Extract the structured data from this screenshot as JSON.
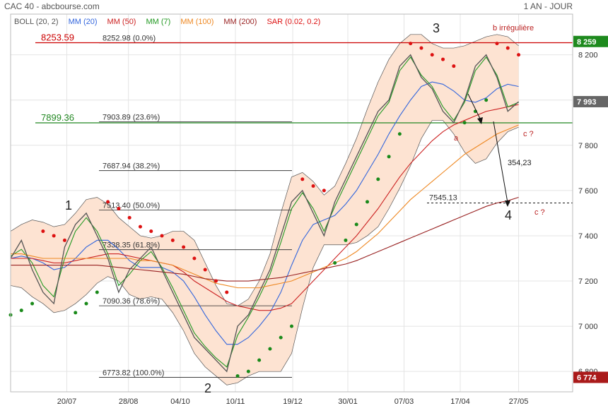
{
  "chart_data": {
    "type": "line",
    "title": "CAC 40 - abcbourse.com",
    "period": "1 AN - JOUR",
    "x": [
      0,
      1,
      2,
      3,
      4,
      5,
      6,
      7,
      8,
      9,
      10,
      11,
      12,
      13,
      14,
      15,
      16,
      17,
      18,
      19,
      20,
      21,
      22,
      23,
      24,
      25,
      26,
      27,
      28,
      29,
      30,
      31,
      32,
      33,
      34,
      35,
      36,
      37,
      38,
      39,
      40,
      41,
      42,
      43,
      44,
      45,
      46,
      47
    ],
    "xlim": [
      0,
      52
    ],
    "xticks": [
      {
        "value": 5.2,
        "label": "20/07"
      },
      {
        "value": 10.9,
        "label": "28/08"
      },
      {
        "value": 15.7,
        "label": "04/10"
      },
      {
        "value": 20.8,
        "label": "10/11"
      },
      {
        "value": 26.1,
        "label": "19/12"
      },
      {
        "value": 31.2,
        "label": "30/01"
      },
      {
        "value": 36.4,
        "label": "07/03"
      },
      {
        "value": 41.6,
        "label": "17/04"
      },
      {
        "value": 47,
        "label": "27/05"
      }
    ],
    "ylim": [
      6710,
      8380
    ],
    "yticks": [
      {
        "value": 6800,
        "label": "6 800"
      },
      {
        "value": 7000,
        "label": "7 000"
      },
      {
        "value": 7200,
        "label": "7 200"
      },
      {
        "value": 7400,
        "label": "7 400"
      },
      {
        "value": 7600,
        "label": "7 600"
      },
      {
        "value": 7800,
        "label": "7 800"
      },
      {
        "value": 8000,
        "label": "8 000"
      },
      {
        "value": 8200,
        "label": "8 200"
      }
    ],
    "grid": true,
    "close": {
      "color": "#555555",
      "values": [
        7300,
        7380,
        7250,
        7150,
        7100,
        7350,
        7450,
        7500,
        7400,
        7300,
        7150,
        7250,
        7300,
        7350,
        7250,
        7150,
        7050,
        6950,
        6900,
        6850,
        6800,
        7000,
        7050,
        7150,
        7250,
        7400,
        7550,
        7600,
        7500,
        7400,
        7550,
        7650,
        7750,
        7850,
        7950,
        8000,
        8150,
        8200,
        8100,
        8050,
        7950,
        7900,
        8000,
        8150,
        8200,
        8100,
        7950,
        7993
      ]
    },
    "bollinger": {
      "name": "BOLL (20, 2)",
      "color": "#555555",
      "fill": "#fde3d2",
      "upper": [
        7420,
        7450,
        7470,
        7460,
        7440,
        7450,
        7500,
        7560,
        7570,
        7540,
        7480,
        7440,
        7400,
        7390,
        7400,
        7420,
        7420,
        7380,
        7280,
        7180,
        7100,
        7090,
        7120,
        7200,
        7320,
        7500,
        7660,
        7680,
        7640,
        7580,
        7620,
        7720,
        7830,
        7960,
        8080,
        8180,
        8250,
        8290,
        8290,
        8250,
        8230,
        8230,
        8240,
        8260,
        8280,
        8290,
        8280,
        8240
      ],
      "lower": [
        7180,
        7170,
        7130,
        7100,
        7060,
        7070,
        7100,
        7140,
        7190,
        7220,
        7200,
        7140,
        7120,
        7130,
        7120,
        7060,
        6980,
        6880,
        6820,
        6780,
        6740,
        6750,
        6780,
        6800,
        6800,
        6800,
        6880,
        7080,
        7260,
        7360,
        7360,
        7360,
        7370,
        7400,
        7440,
        7520,
        7610,
        7710,
        7830,
        7910,
        7910,
        7850,
        7770,
        7720,
        7740,
        7810,
        7860,
        7880
      ]
    },
    "series": [
      {
        "name": "MM (20)",
        "color": "#3366dd",
        "values": [
          7300,
          7310,
          7300,
          7280,
          7250,
          7260,
          7300,
          7350,
          7380,
          7380,
          7340,
          7290,
          7260,
          7260,
          7260,
          7240,
          7200,
          7130,
          7050,
          6980,
          6920,
          6920,
          6950,
          7000,
          7060,
          7150,
          7270,
          7380,
          7450,
          7470,
          7490,
          7540,
          7600,
          7680,
          7760,
          7850,
          7930,
          8000,
          8060,
          8080,
          8070,
          8040,
          8000,
          7990,
          8010,
          8050,
          8070,
          8060
        ]
      },
      {
        "name": "MM (50)",
        "color": "#cc2222",
        "values": [
          7300,
          7300,
          7300,
          7290,
          7280,
          7280,
          7290,
          7300,
          7310,
          7320,
          7320,
          7310,
          7300,
          7290,
          7280,
          7270,
          7240,
          7200,
          7170,
          7140,
          7110,
          7090,
          7080,
          7070,
          7070,
          7080,
          7100,
          7150,
          7200,
          7250,
          7300,
          7350,
          7400,
          7460,
          7520,
          7590,
          7660,
          7720,
          7770,
          7820,
          7860,
          7890,
          7910,
          7930,
          7950,
          7960,
          7970,
          7980
        ]
      },
      {
        "name": "MM (7)",
        "color": "#229922",
        "values": [
          7310,
          7340,
          7280,
          7180,
          7130,
          7300,
          7420,
          7480,
          7420,
          7320,
          7180,
          7230,
          7290,
          7330,
          7260,
          7170,
          7070,
          6970,
          6910,
          6860,
          6820,
          6960,
          7040,
          7130,
          7230,
          7370,
          7520,
          7590,
          7520,
          7420,
          7530,
          7630,
          7730,
          7830,
          7930,
          7990,
          8130,
          8190,
          8110,
          8060,
          7970,
          7910,
          7990,
          8130,
          8190,
          8110,
          7970,
          7990
        ]
      },
      {
        "name": "MM (100)",
        "color": "#ee8822",
        "values": [
          7320,
          7320,
          7310,
          7300,
          7300,
          7300,
          7300,
          7300,
          7300,
          7300,
          7300,
          7300,
          7290,
          7290,
          7280,
          7270,
          7250,
          7230,
          7210,
          7190,
          7180,
          7170,
          7170,
          7170,
          7180,
          7190,
          7200,
          7220,
          7240,
          7260,
          7280,
          7300,
          7330,
          7370,
          7410,
          7460,
          7510,
          7560,
          7600,
          7640,
          7680,
          7720,
          7760,
          7790,
          7820,
          7850,
          7870,
          7890
        ]
      },
      {
        "name": "MM (200)",
        "color": "#992222",
        "values": [
          7270,
          7270,
          7270,
          7270,
          7270,
          7270,
          7270,
          7270,
          7270,
          7265,
          7260,
          7255,
          7250,
          7245,
          7240,
          7235,
          7230,
          7220,
          7210,
          7205,
          7200,
          7200,
          7200,
          7205,
          7210,
          7215,
          7225,
          7235,
          7245,
          7255,
          7265,
          7275,
          7290,
          7310,
          7330,
          7350,
          7370,
          7390,
          7410,
          7430,
          7450,
          7470,
          7490,
          7510,
          7530,
          7545,
          7555,
          7570
        ]
      }
    ],
    "sar": {
      "name": "SAR (0.02, 0.2)",
      "color": "#dd1111",
      "color_below": "#1a8a1a",
      "values": [
        7050,
        7070,
        7100,
        7420,
        7400,
        7380,
        7060,
        7100,
        7150,
        7550,
        7520,
        7480,
        7440,
        7420,
        7400,
        7380,
        7350,
        7300,
        7250,
        7200,
        7150,
        6780,
        6800,
        6850,
        6900,
        6950,
        7000,
        7650,
        7620,
        7600,
        7280,
        7380,
        7450,
        7550,
        7650,
        7750,
        7850,
        8250,
        8230,
        8200,
        8180,
        8150,
        7900,
        7950,
        8000,
        8250,
        8230,
        8200
      ]
    },
    "fibonacci": [
      {
        "value": 8252.98,
        "label": "8252.98  (0.0%)"
      },
      {
        "value": 7903.89,
        "label": "7903.89  (23.6%)"
      },
      {
        "value": 7687.94,
        "label": "7687.94  (38.2%)"
      },
      {
        "value": 7513.4,
        "label": "7513.40  (50.0%)"
      },
      {
        "value": 7338.35,
        "label": "7338.35  (61.8%)"
      },
      {
        "value": 7090.36,
        "label": "7090.36  (78.6%)"
      },
      {
        "value": 6773.82,
        "label": "6773.82  (100.0%)"
      }
    ],
    "levels": [
      {
        "value": 8253.59,
        "label": "8253.59",
        "color": "#cc0000"
      },
      {
        "value": 7899.36,
        "label": "7899.36",
        "color": "#228822"
      }
    ],
    "target": {
      "value": 7545.13,
      "label": "7545.13"
    },
    "price_tags": [
      {
        "value": 8259,
        "label": "8 259",
        "color": "#1e8a1e"
      },
      {
        "value": 7993,
        "label": "7 993",
        "color": "#666666"
      },
      {
        "value": 6774,
        "label": "6 774",
        "color": "#aa1a1a"
      }
    ],
    "annotations": [
      "1",
      "2",
      "3",
      "4",
      "a",
      "b irrégulière",
      "c ?",
      "c ?",
      "354,23"
    ]
  }
}
